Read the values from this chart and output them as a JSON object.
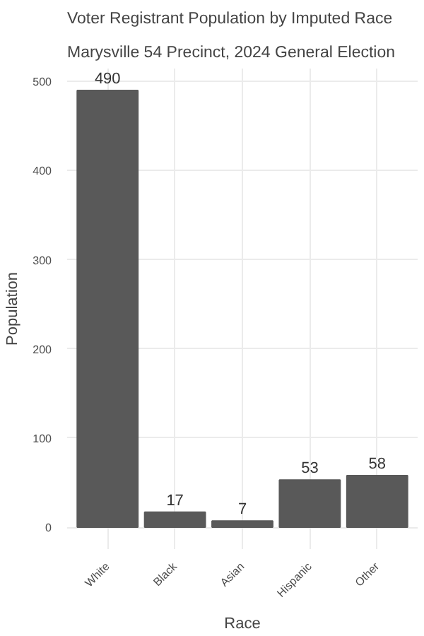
{
  "chart_data": {
    "type": "bar",
    "title": "Voter Registrant Population by Imputed Race",
    "subtitle": "Marysville 54 Precinct,  2024 General Election",
    "xlabel": "Race",
    "ylabel": "Population",
    "categories": [
      "White",
      "Black",
      "Asian",
      "Hispanic",
      "Other"
    ],
    "values": [
      490,
      17,
      7,
      53,
      58
    ],
    "color": "#595959",
    "data_labels": true,
    "ylim": [
      -24.5,
      514.5
    ],
    "yticks": [
      0,
      100,
      200,
      300,
      400,
      500
    ],
    "grid": true
  }
}
